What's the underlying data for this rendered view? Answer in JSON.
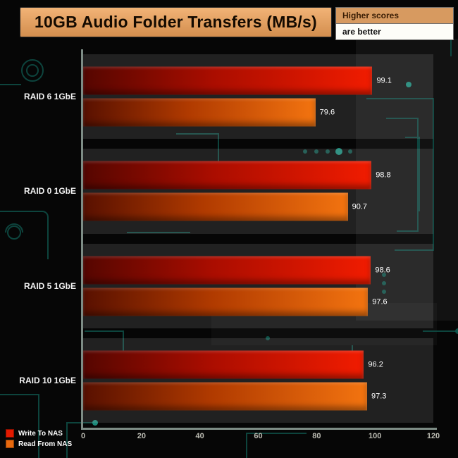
{
  "header": {
    "title": "10GB Audio Folder Transfers (MB/s)",
    "note_top": "Higher scores",
    "note_bottom": "are better"
  },
  "legend": {
    "items": [
      {
        "label": "Write To NAS",
        "color": "#e31a00"
      },
      {
        "label": "Read From NAS",
        "color": "#e8690e"
      }
    ]
  },
  "chart_data": {
    "type": "bar",
    "orientation": "horizontal",
    "title": "10GB Audio Folder Transfers (MB/s)",
    "categories": [
      "RAID 6 1GbE",
      "RAID 0 1GbE",
      "RAID 5 1GbE",
      "RAID 10 1GbE"
    ],
    "series": [
      {
        "name": "Write To NAS",
        "values": [
          99.1,
          98.8,
          98.6,
          96.2
        ],
        "color_start": "#550600",
        "color_mid": "#aa0d00",
        "color_end": "#f11c00"
      },
      {
        "name": "Read From NAS",
        "values": [
          79.6,
          90.7,
          97.6,
          97.3
        ],
        "color_start": "#581000",
        "color_mid": "#b03a00",
        "color_end": "#f37410"
      }
    ],
    "xlim": [
      0,
      120
    ],
    "xticks": [
      0,
      20,
      40,
      60,
      80,
      100,
      120
    ],
    "grid": false,
    "legend_position": "bottom-left",
    "background": "#060606",
    "band_color": "rgba(200,200,200,0.14)"
  }
}
